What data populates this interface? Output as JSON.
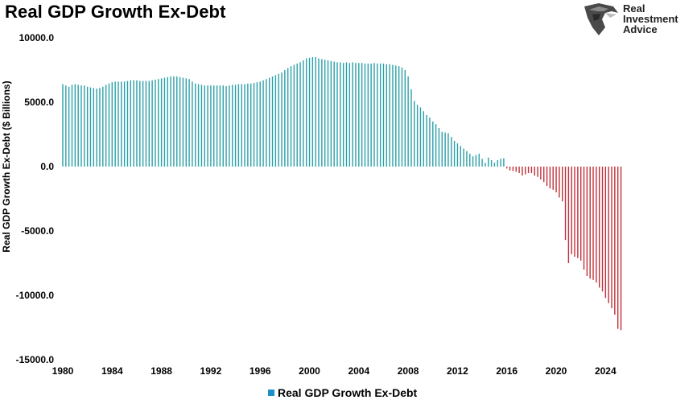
{
  "title": "Real GDP Growth Ex-Debt",
  "logo": {
    "icon": "eagle-head-icon",
    "lines": [
      "Real",
      "Investment",
      "Advice"
    ]
  },
  "colors": {
    "positive": "#2aa0a8",
    "negative": "#c0303a",
    "legend": "#1f8fc8"
  },
  "chart_data": {
    "type": "bar",
    "title": "Real GDP Growth Ex-Debt",
    "xlabel": "",
    "ylabel": "Real GDP Growth Ex-Debt ($ Billions)",
    "ylim": [
      -15000,
      10000
    ],
    "yticks": [
      10000,
      5000,
      0,
      -5000,
      -10000,
      -15000
    ],
    "ytick_labels": [
      "10000.0",
      "5000.0",
      "0.0",
      "-5000.0",
      "-10000.0",
      "-15000.0"
    ],
    "xlim": [
      1980,
      2026
    ],
    "xticks": [
      1980,
      1984,
      1988,
      1992,
      1996,
      2000,
      2004,
      2008,
      2012,
      2016,
      2020,
      2024
    ],
    "xtick_labels": [
      "1980",
      "1984",
      "1988",
      "1992",
      "1996",
      "2000",
      "2004",
      "2008",
      "2012",
      "2016",
      "2020",
      "2024"
    ],
    "grid": false,
    "legend_position": "bottom",
    "series": [
      {
        "name": "Real GDP Growth Ex-Debt",
        "points": [
          [
            1980.0,
            6400
          ],
          [
            1980.25,
            6300
          ],
          [
            1980.5,
            6200
          ],
          [
            1980.75,
            6350
          ],
          [
            1981.0,
            6400
          ],
          [
            1981.25,
            6350
          ],
          [
            1981.5,
            6300
          ],
          [
            1981.75,
            6300
          ],
          [
            1982.0,
            6200
          ],
          [
            1982.25,
            6150
          ],
          [
            1982.5,
            6100
          ],
          [
            1982.75,
            6050
          ],
          [
            1983.0,
            6100
          ],
          [
            1983.25,
            6200
          ],
          [
            1983.5,
            6350
          ],
          [
            1983.75,
            6450
          ],
          [
            1984.0,
            6550
          ],
          [
            1984.25,
            6600
          ],
          [
            1984.5,
            6600
          ],
          [
            1984.75,
            6600
          ],
          [
            1985.0,
            6600
          ],
          [
            1985.25,
            6650
          ],
          [
            1985.5,
            6700
          ],
          [
            1985.75,
            6700
          ],
          [
            1986.0,
            6700
          ],
          [
            1986.25,
            6650
          ],
          [
            1986.5,
            6650
          ],
          [
            1986.75,
            6650
          ],
          [
            1987.0,
            6650
          ],
          [
            1987.25,
            6700
          ],
          [
            1987.5,
            6750
          ],
          [
            1987.75,
            6800
          ],
          [
            1988.0,
            6850
          ],
          [
            1988.25,
            6900
          ],
          [
            1988.5,
            6950
          ],
          [
            1988.75,
            7000
          ],
          [
            1989.0,
            7000
          ],
          [
            1989.25,
            7000
          ],
          [
            1989.5,
            6950
          ],
          [
            1989.75,
            6900
          ],
          [
            1990.0,
            6850
          ],
          [
            1990.25,
            6800
          ],
          [
            1990.5,
            6600
          ],
          [
            1990.75,
            6450
          ],
          [
            1991.0,
            6400
          ],
          [
            1991.25,
            6350
          ],
          [
            1991.5,
            6300
          ],
          [
            1991.75,
            6300
          ],
          [
            1992.0,
            6300
          ],
          [
            1992.25,
            6300
          ],
          [
            1992.5,
            6300
          ],
          [
            1992.75,
            6300
          ],
          [
            1993.0,
            6300
          ],
          [
            1993.25,
            6250
          ],
          [
            1993.5,
            6300
          ],
          [
            1993.75,
            6350
          ],
          [
            1994.0,
            6350
          ],
          [
            1994.25,
            6400
          ],
          [
            1994.5,
            6400
          ],
          [
            1994.75,
            6400
          ],
          [
            1995.0,
            6450
          ],
          [
            1995.25,
            6450
          ],
          [
            1995.5,
            6500
          ],
          [
            1995.75,
            6550
          ],
          [
            1996.0,
            6600
          ],
          [
            1996.25,
            6700
          ],
          [
            1996.5,
            6800
          ],
          [
            1996.75,
            6900
          ],
          [
            1997.0,
            7000
          ],
          [
            1997.25,
            7100
          ],
          [
            1997.5,
            7200
          ],
          [
            1997.75,
            7300
          ],
          [
            1998.0,
            7500
          ],
          [
            1998.25,
            7650
          ],
          [
            1998.5,
            7800
          ],
          [
            1998.75,
            7900
          ],
          [
            1999.0,
            8000
          ],
          [
            1999.25,
            8100
          ],
          [
            1999.5,
            8250
          ],
          [
            1999.75,
            8400
          ],
          [
            2000.0,
            8450
          ],
          [
            2000.25,
            8500
          ],
          [
            2000.5,
            8500
          ],
          [
            2000.75,
            8400
          ],
          [
            2001.0,
            8350
          ],
          [
            2001.25,
            8300
          ],
          [
            2001.5,
            8250
          ],
          [
            2001.75,
            8200
          ],
          [
            2002.0,
            8150
          ],
          [
            2002.25,
            8100
          ],
          [
            2002.5,
            8100
          ],
          [
            2002.75,
            8050
          ],
          [
            2003.0,
            8100
          ],
          [
            2003.25,
            8050
          ],
          [
            2003.5,
            8100
          ],
          [
            2003.75,
            8050
          ],
          [
            2004.0,
            8050
          ],
          [
            2004.25,
            8050
          ],
          [
            2004.5,
            8000
          ],
          [
            2004.75,
            8000
          ],
          [
            2005.0,
            8000
          ],
          [
            2005.25,
            8050
          ],
          [
            2005.5,
            8000
          ],
          [
            2005.75,
            8000
          ],
          [
            2006.0,
            8000
          ],
          [
            2006.25,
            7950
          ],
          [
            2006.5,
            7950
          ],
          [
            2006.75,
            7900
          ],
          [
            2007.0,
            7850
          ],
          [
            2007.25,
            7800
          ],
          [
            2007.5,
            7700
          ],
          [
            2007.75,
            7500
          ],
          [
            2008.0,
            7000
          ],
          [
            2008.25,
            6000
          ],
          [
            2008.5,
            5100
          ],
          [
            2008.75,
            4800
          ],
          [
            2009.0,
            4600
          ],
          [
            2009.25,
            4300
          ],
          [
            2009.5,
            4000
          ],
          [
            2009.75,
            3800
          ],
          [
            2010.0,
            3500
          ],
          [
            2010.25,
            3300
          ],
          [
            2010.5,
            3000
          ],
          [
            2010.75,
            2700
          ],
          [
            2011.0,
            2650
          ],
          [
            2011.25,
            2600
          ],
          [
            2011.5,
            2300
          ],
          [
            2011.75,
            2000
          ],
          [
            2012.0,
            1800
          ],
          [
            2012.25,
            1600
          ],
          [
            2012.5,
            1400
          ],
          [
            2012.75,
            1200
          ],
          [
            2013.0,
            1000
          ],
          [
            2013.25,
            800
          ],
          [
            2013.5,
            900
          ],
          [
            2013.75,
            1000
          ],
          [
            2014.0,
            600
          ],
          [
            2014.25,
            300
          ],
          [
            2014.5,
            700
          ],
          [
            2014.75,
            500
          ],
          [
            2015.0,
            300
          ],
          [
            2015.25,
            500
          ],
          [
            2015.5,
            600
          ],
          [
            2015.75,
            650
          ],
          [
            2016.0,
            -150
          ],
          [
            2016.25,
            -300
          ],
          [
            2016.5,
            -350
          ],
          [
            2016.75,
            -400
          ],
          [
            2017.0,
            -500
          ],
          [
            2017.25,
            -700
          ],
          [
            2017.5,
            -600
          ],
          [
            2017.75,
            -500
          ],
          [
            2018.0,
            -500
          ],
          [
            2018.25,
            -700
          ],
          [
            2018.5,
            -800
          ],
          [
            2018.75,
            -1000
          ],
          [
            2019.0,
            -1200
          ],
          [
            2019.25,
            -1500
          ],
          [
            2019.5,
            -1700
          ],
          [
            2019.75,
            -1800
          ],
          [
            2020.0,
            -2000
          ],
          [
            2020.25,
            -2400
          ],
          [
            2020.5,
            -2700
          ],
          [
            2020.75,
            -5700
          ],
          [
            2021.0,
            -7500
          ],
          [
            2021.25,
            -6800
          ],
          [
            2021.5,
            -7000
          ],
          [
            2021.75,
            -7100
          ],
          [
            2022.0,
            -7300
          ],
          [
            2022.25,
            -8000
          ],
          [
            2022.5,
            -8500
          ],
          [
            2022.75,
            -8700
          ],
          [
            2023.0,
            -8800
          ],
          [
            2023.25,
            -9000
          ],
          [
            2023.5,
            -9400
          ],
          [
            2023.75,
            -9700
          ],
          [
            2024.0,
            -10200
          ],
          [
            2024.25,
            -10600
          ],
          [
            2024.5,
            -11000
          ],
          [
            2024.75,
            -11500
          ],
          [
            2025.0,
            -12600
          ],
          [
            2025.25,
            -12700
          ]
        ]
      }
    ]
  }
}
